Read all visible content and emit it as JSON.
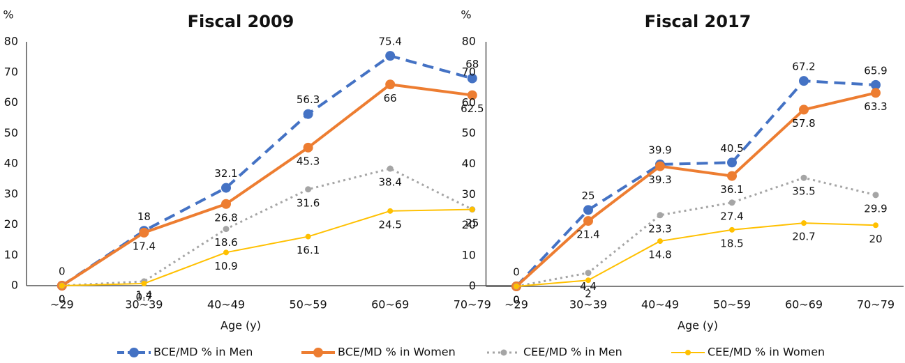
{
  "chart_data": [
    {
      "type": "line",
      "title": "Fiscal 2009",
      "y_label": "%",
      "x_label": "Age (y)",
      "categories": [
        "~29",
        "30~39",
        "40~49",
        "50~59",
        "60~69",
        "70~79"
      ],
      "ylim": [
        0,
        80
      ],
      "yticks": [
        0,
        10,
        20,
        30,
        40,
        50,
        60,
        70,
        80
      ],
      "grid": false,
      "series": [
        {
          "name": "BCE/MD % in Men",
          "color": "#4472c4",
          "style": "dash",
          "values": [
            0,
            18,
            32.1,
            56.3,
            75.4,
            68
          ]
        },
        {
          "name": "BCE/MD % in Women",
          "color": "#ed7d31",
          "style": "solid",
          "values": [
            0,
            17.4,
            26.8,
            45.3,
            66,
            62.5
          ]
        },
        {
          "name": "CEE/MD % in Men",
          "color": "#a5a5a5",
          "style": "dot",
          "values": [
            0,
            1.4,
            18.6,
            31.6,
            38.4,
            25
          ]
        },
        {
          "name": "CEE/MD % in Women",
          "color": "#ffc000",
          "style": "thin",
          "values": [
            0,
            0.7,
            10.9,
            16.1,
            24.5,
            25
          ]
        }
      ]
    },
    {
      "type": "line",
      "title": "Fiscal 2017",
      "y_label": "%",
      "x_label": "Age (y)",
      "categories": [
        "~29",
        "30~39",
        "40~49",
        "50~59",
        "60~69",
        "70~79"
      ],
      "ylim": [
        0,
        80
      ],
      "yticks": [
        0,
        10,
        20,
        30,
        40,
        50,
        60,
        70,
        80
      ],
      "grid": false,
      "series": [
        {
          "name": "BCE/MD % in Men",
          "color": "#4472c4",
          "style": "dash",
          "values": [
            0,
            25,
            39.9,
            40.5,
            67.2,
            65.9
          ]
        },
        {
          "name": "BCE/MD % in Women",
          "color": "#ed7d31",
          "style": "solid",
          "values": [
            0,
            21.4,
            39.3,
            36.1,
            57.8,
            63.3
          ]
        },
        {
          "name": "CEE/MD % in Men",
          "color": "#a5a5a5",
          "style": "dot",
          "values": [
            0,
            4.4,
            23.3,
            27.4,
            35.5,
            29.9
          ]
        },
        {
          "name": "CEE/MD % in Women",
          "color": "#ffc000",
          "style": "thin",
          "values": [
            0,
            2,
            14.8,
            18.5,
            20.7,
            20
          ]
        }
      ]
    }
  ]
}
